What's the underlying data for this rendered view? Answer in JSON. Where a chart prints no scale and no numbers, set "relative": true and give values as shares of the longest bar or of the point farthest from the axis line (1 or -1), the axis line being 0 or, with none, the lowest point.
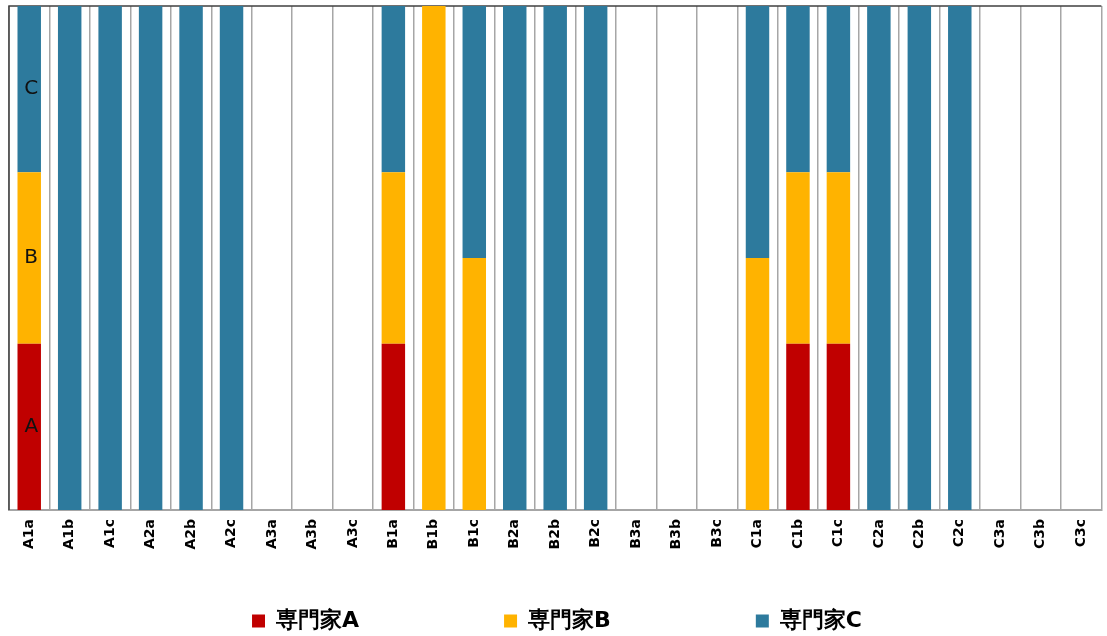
{
  "chart_data": {
    "type": "bar",
    "stacked": true,
    "relative": true,
    "grid": "x",
    "legend": "bottom",
    "categories": [
      "A1a",
      "A1b",
      "A1c",
      "A2a",
      "A2b",
      "A2c",
      "A3a",
      "A3b",
      "A3c",
      "B1a",
      "B1b",
      "B1c",
      "B2a",
      "B2b",
      "B2c",
      "B3a",
      "B3b",
      "B3c",
      "C1a",
      "C1b",
      "C1c",
      "C2a",
      "C2b",
      "C2c",
      "C3a",
      "C3b",
      "C3c"
    ],
    "series": [
      {
        "name": "専門家A",
        "color": "#c00000",
        "values": [
          0.33,
          null,
          null,
          null,
          null,
          null,
          null,
          null,
          null,
          0.33,
          null,
          null,
          null,
          null,
          null,
          null,
          null,
          null,
          null,
          0.33,
          0.33,
          null,
          null,
          null,
          null,
          null,
          null
        ]
      },
      {
        "name": "専門家B",
        "color": "#ffb300",
        "values": [
          0.34,
          null,
          null,
          null,
          null,
          null,
          null,
          null,
          null,
          0.34,
          1,
          0.5,
          null,
          null,
          null,
          null,
          null,
          null,
          0.5,
          0.34,
          0.34,
          null,
          null,
          null,
          null,
          null,
          null
        ]
      },
      {
        "name": "専門家C",
        "color": "#2d7a9d",
        "values": [
          0.33,
          1,
          1,
          1,
          1,
          1,
          null,
          null,
          null,
          0.33,
          null,
          0.5,
          1,
          1,
          1,
          null,
          null,
          null,
          0.5,
          0.33,
          0.33,
          1,
          1,
          1,
          null,
          null,
          null
        ]
      }
    ],
    "annotations": [
      "C",
      "B",
      "A"
    ]
  }
}
